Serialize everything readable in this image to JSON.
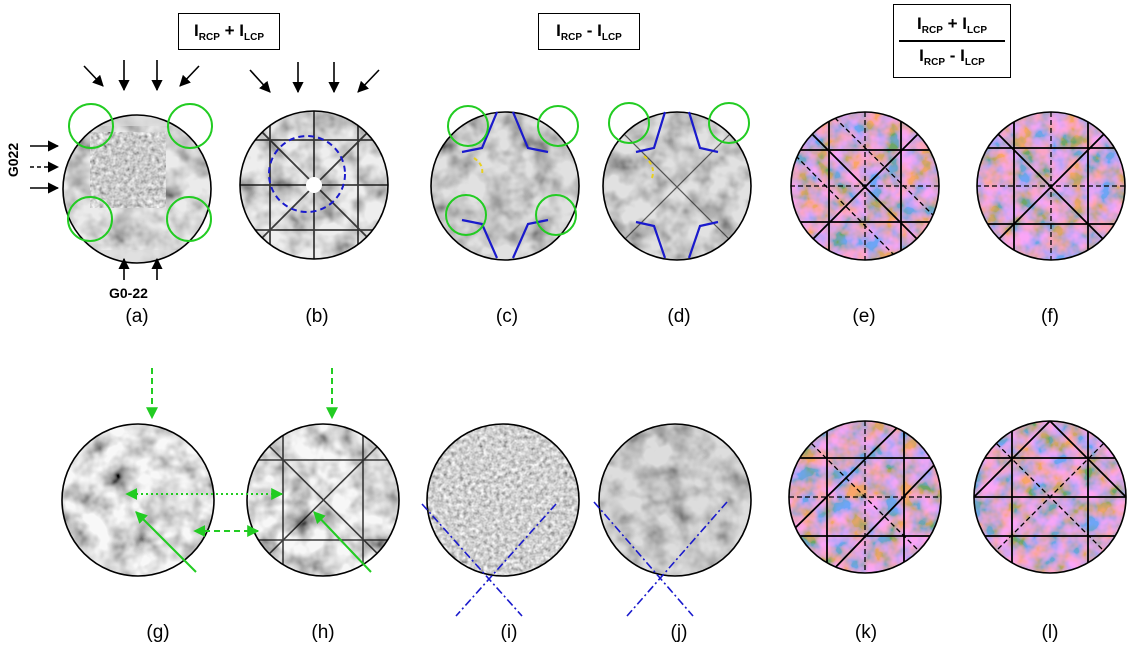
{
  "headers": {
    "sum": {
      "i": "I",
      "a": "RCP",
      "op": " + ",
      "b": "LCP"
    },
    "diff": {
      "i": "I",
      "a": "RCP",
      "op": " - ",
      "b": "LCP"
    },
    "ratio_num": {
      "i": "I",
      "a": "RCP",
      "op": " + ",
      "b": "LCP"
    },
    "ratio_den": {
      "i": "I",
      "a": "RCP",
      "op": " - ",
      "b": "LCP"
    }
  },
  "labels": {
    "g022": "G022",
    "g0m22": "G0-22"
  },
  "captions": [
    "(a)",
    "(b)",
    "(c)",
    "(d)",
    "(e)",
    "(f)",
    "(g)",
    "(h)",
    "(i)",
    "(j)",
    "(k)",
    "(l)"
  ],
  "colors": {
    "green": "#22cc22",
    "blue": "#1a1acc",
    "yellow": "#e8d020",
    "red": "#d83030",
    "navy": "#2030b0"
  }
}
